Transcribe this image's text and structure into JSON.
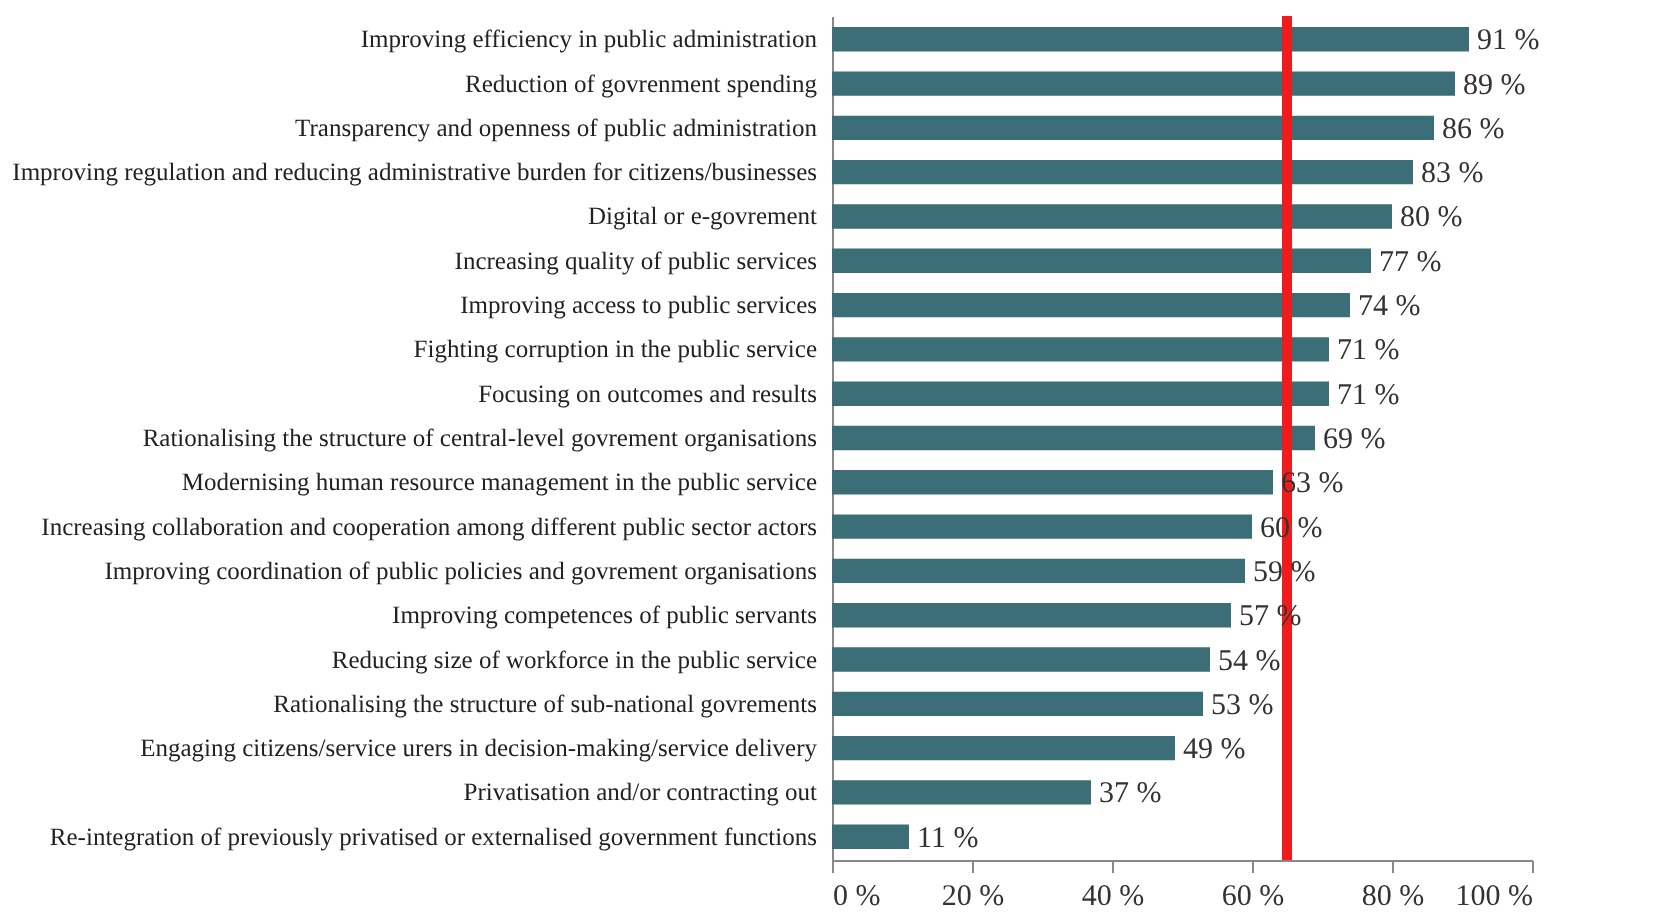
{
  "chart_data": {
    "type": "bar",
    "orientation": "horizontal",
    "categories": [
      "Improving efficiency in public administration",
      "Reduction of govrenment spending",
      "Transparency and openness of public administration",
      "Improving regulation and reducing administrative burden for citizens/businesses",
      "Digital or e-govrement",
      "Increasing quality of public services",
      "Improving access to public services",
      "Fighting corruption in the public service",
      "Focusing on outcomes and results",
      "Rationalising the structure of central-level govrement organisations",
      "Modernising human resource management in the public service",
      "Increasing  collaboration and cooperation among different public sector actors",
      "Improving coordination of public policies and govrement organisations",
      "Improving competences of public servants",
      "Reducing size of workforce in the  public service",
      "Rationalising the structure of sub-national govrements",
      "Engaging citizens/service urers in decision-making/service delivery",
      "Privatisation and/or contracting out",
      "Re-integration of previously privatised or externalised government functions"
    ],
    "values": [
      91,
      89,
      86,
      83,
      80,
      77,
      74,
      71,
      71,
      69,
      63,
      60,
      59,
      57,
      54,
      53,
      49,
      37,
      11
    ],
    "value_labels": [
      "91 %",
      "89 %",
      "86 %",
      "83 %",
      "80 %",
      "77 %",
      "74 %",
      "71 %",
      "71 %",
      "69 %",
      "63 %",
      "60 %",
      "59 %",
      "57 %",
      "54 %",
      "53 %",
      "49 %",
      "37 %",
      "11 %"
    ],
    "color": "#3c6e78",
    "xlim": [
      0,
      100
    ],
    "xticks": [
      {
        "value": 0,
        "label": "0 %"
      },
      {
        "value": 20,
        "label": "20 %"
      },
      {
        "value": 40,
        "label": "40 %"
      },
      {
        "value": 60,
        "label": "60 %"
      },
      {
        "value": 80,
        "label": "80 %"
      },
      {
        "value": 100,
        "label": "100 %"
      }
    ],
    "ref_lines": [
      {
        "axis": "x",
        "value": 65,
        "color": "#ee1c1c"
      }
    ],
    "grid": false
  }
}
